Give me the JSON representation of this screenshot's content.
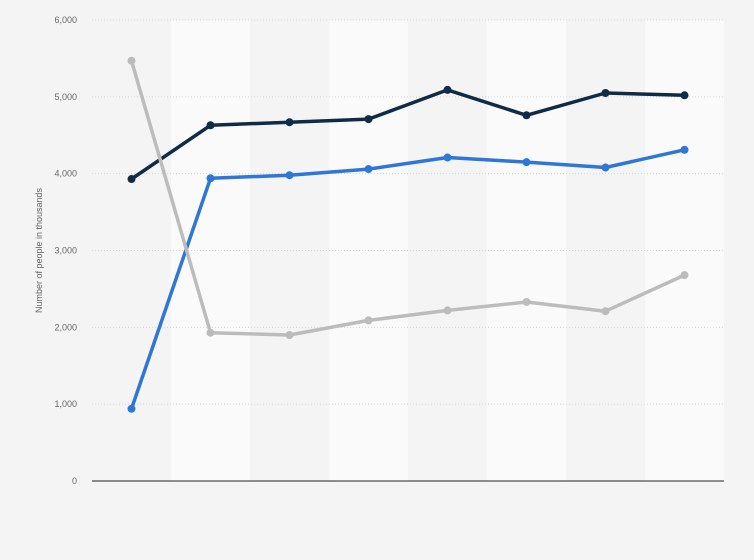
{
  "chart_data": {
    "type": "line",
    "title": "",
    "xlabel": "",
    "ylabel": "Number of people in thousands",
    "ylim": [
      0,
      6000
    ],
    "y_ticks": [
      {
        "value": 0,
        "label": "0"
      },
      {
        "value": 1000,
        "label": "1,000"
      },
      {
        "value": 2000,
        "label": "2,000"
      },
      {
        "value": 3000,
        "label": "3,000"
      },
      {
        "value": 4000,
        "label": "4,000"
      },
      {
        "value": 5000,
        "label": "5,000"
      },
      {
        "value": 6000,
        "label": "6,000"
      }
    ],
    "grid": true,
    "legend": "none",
    "categories": [
      "",
      "",
      "",
      "",
      "",
      "",
      "",
      ""
    ],
    "series": [
      {
        "color": "#0f2b46",
        "values": [
          3930,
          4630,
          4670,
          4710,
          5090,
          4760,
          5050,
          5020
        ]
      },
      {
        "color": "#2f77d6",
        "values": [
          940,
          3940,
          3980,
          4060,
          4210,
          4150,
          4080,
          4310
        ]
      },
      {
        "color": "#bcbcbc",
        "values": [
          5470,
          1930,
          1900,
          2090,
          2220,
          2330,
          2210,
          2680
        ]
      }
    ]
  }
}
